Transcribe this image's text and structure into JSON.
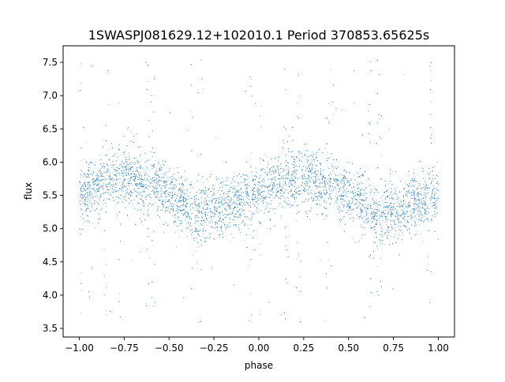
{
  "chart_data": {
    "type": "scatter",
    "title": "1SWASPJ081629.12+102010.1 Period 370853.65625s",
    "xlabel": "phase",
    "ylabel": "flux",
    "xlim": [
      -1.09,
      1.09
    ],
    "ylim": [
      3.37,
      7.75
    ],
    "xticks": [
      -1.0,
      -0.75,
      -0.5,
      -0.25,
      0.0,
      0.25,
      0.5,
      0.75,
      1.0
    ],
    "xtick_labels": [
      "−1.00",
      "−0.75",
      "−0.50",
      "−0.25",
      "0.00",
      "0.25",
      "0.50",
      "0.75",
      "1.00"
    ],
    "yticks": [
      3.5,
      4.0,
      4.5,
      5.0,
      5.5,
      6.0,
      6.5,
      7.0,
      7.5
    ],
    "ytick_labels": [
      "3.5",
      "4.0",
      "4.5",
      "5.0",
      "5.5",
      "6.0",
      "6.5",
      "7.0",
      "7.5"
    ],
    "grid": false,
    "legend": "none",
    "marker_color": "#1f77b4",
    "series": [
      {
        "phase_curve": {
          "x": [
            0.0,
            0.05,
            0.1,
            0.15,
            0.2,
            0.25,
            0.3,
            0.35,
            0.4,
            0.45,
            0.5,
            0.55,
            0.6,
            0.65,
            0.7,
            0.75,
            0.8,
            0.85,
            0.9,
            0.95,
            1.0
          ],
          "y": [
            5.55,
            5.6,
            5.65,
            5.72,
            5.75,
            5.8,
            5.78,
            5.68,
            5.72,
            5.6,
            5.5,
            5.42,
            5.35,
            5.18,
            5.25,
            5.28,
            5.3,
            5.35,
            5.42,
            5.45,
            5.55
          ]
        },
        "spread": 0.22,
        "points_per_cycle": 4500,
        "outlier_phases": [
          0.0,
          0.15,
          0.22,
          0.38,
          0.41,
          0.62,
          0.67,
          0.95
        ]
      }
    ]
  }
}
